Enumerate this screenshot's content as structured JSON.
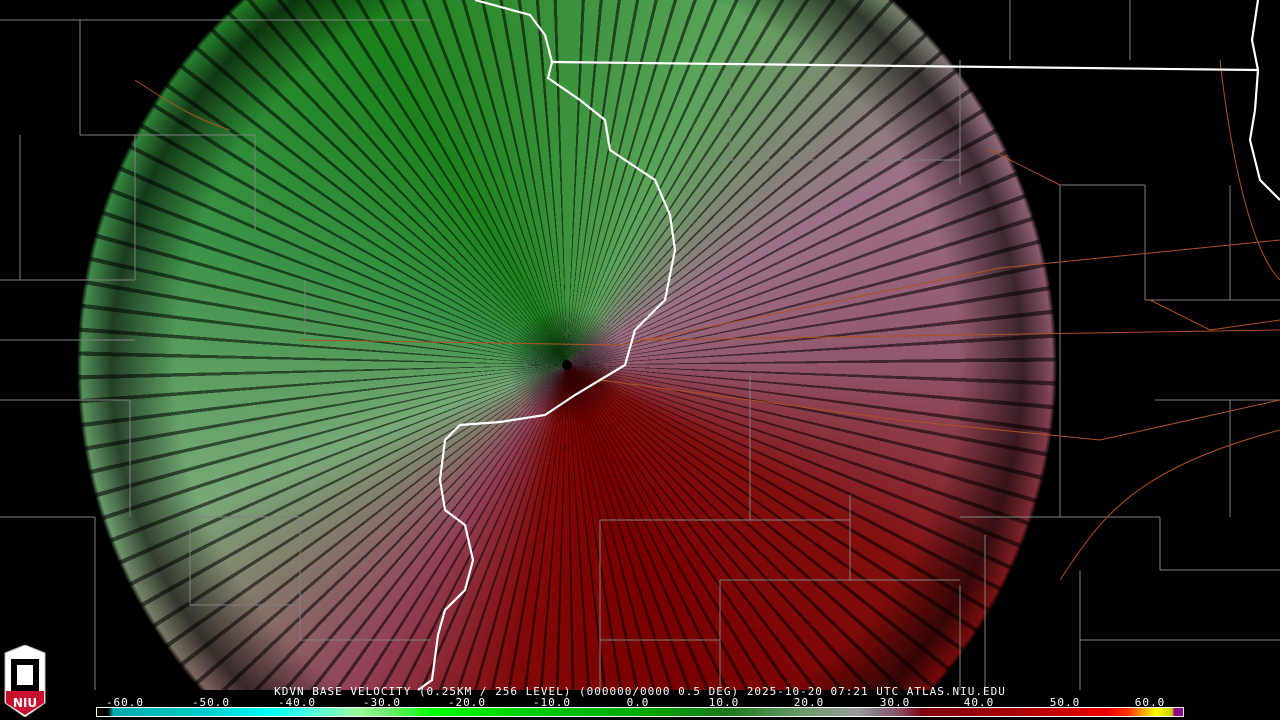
{
  "product": {
    "title": "KDVN BASE VELOCITY (0.25KM / 256 LEVEL) (000000/0000 0.5 DEG) 2025-10-20 07:21 UTC  ATLAS.NIU.EDU"
  },
  "logo": {
    "text": "NIU"
  },
  "legend": {
    "ticks": [
      "-60.0",
      "-50.0",
      "-40.0",
      "-30.0",
      "-20.0",
      "-10.0",
      "0.0",
      "10.0",
      "20.0",
      "30.0",
      "40.0",
      "50.0",
      "60.0"
    ],
    "colors": {
      "inbound": "#00c000",
      "outbound": "#800000",
      "zero": "#999999",
      "max": "#990099"
    }
  },
  "map": {
    "radar_site": "KDVN",
    "state_border_color": "#ffffff",
    "county_line_color": "#808080",
    "road_color": "#b05020"
  }
}
